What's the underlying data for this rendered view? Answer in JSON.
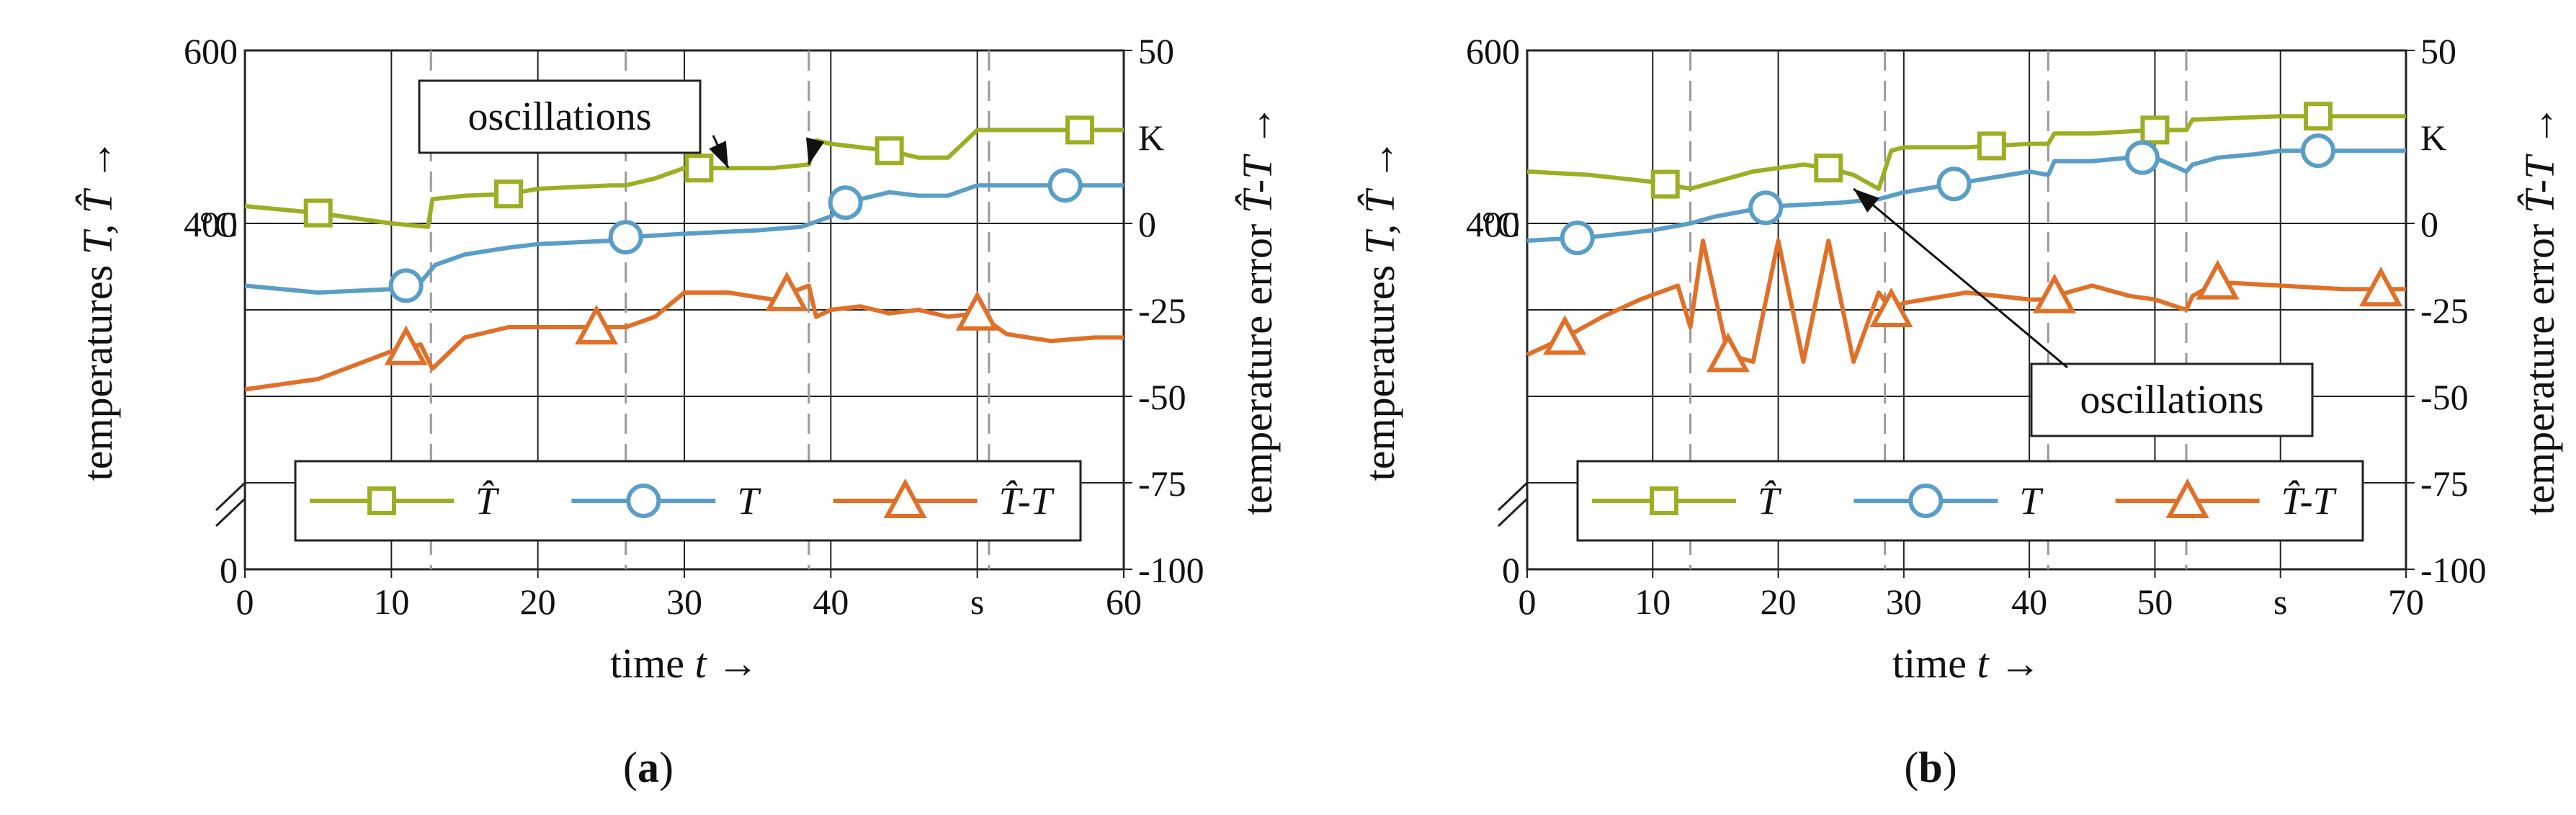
{
  "chart_data": [
    {
      "type": "line",
      "panel": "a",
      "caption_letter": "a",
      "xlabel_text": "time",
      "xlabel_symbol": "t →",
      "ylabel_left_text": "temperatures",
      "ylabel_left_symbols": "T, T̂ →",
      "ylabel_right_text": "temperature error",
      "ylabel_right_symbols": "T̂-T →",
      "left_unit": "°C",
      "right_unit": "K",
      "x_unit": "s",
      "xlim": [
        0,
        60
      ],
      "ylim_left": [
        0,
        600
      ],
      "ylim_right": [
        -100,
        50
      ],
      "x_ticks": [
        0,
        10,
        20,
        30,
        40,
        50,
        60
      ],
      "x_tick_labels": [
        "0",
        "10",
        "20",
        "30",
        "40",
        "s",
        "60"
      ],
      "y_left_ticks": [
        0,
        400,
        600
      ],
      "y_left_tick_labels": [
        "0",
        "400",
        "600"
      ],
      "y_right_ticks": [
        -100,
        -75,
        -50,
        -25,
        0,
        50
      ],
      "y_right_tick_labels": [
        "-100",
        "-75",
        "-50",
        "-25",
        "0",
        "50"
      ],
      "event_lines_x": [
        12.7,
        26,
        38.5,
        50.8
      ],
      "annotation": "oscillations",
      "legend": [
        "T̂",
        "T",
        "T̂-T"
      ],
      "series": [
        {
          "name": "T̂",
          "axis": "right",
          "color": "#9fad24",
          "marker": "square",
          "x": [
            0,
            5,
            10,
            12.5,
            12.8,
            15,
            18,
            20,
            25,
            26,
            28,
            30,
            33,
            36,
            38.5,
            39,
            40,
            42,
            44,
            46,
            48,
            50,
            52,
            55,
            57,
            60
          ],
          "y": [
            5,
            3,
            0,
            -1,
            7,
            8,
            8.5,
            10,
            11,
            11,
            13,
            16,
            16,
            16,
            17,
            24,
            23,
            22,
            21,
            19,
            19,
            27,
            27,
            27,
            27,
            27
          ],
          "markers_x": [
            5,
            18,
            31,
            44,
            57
          ]
        },
        {
          "name": "T",
          "axis": "right",
          "color": "#5a9ec8",
          "marker": "circle",
          "x": [
            0,
            5,
            10,
            12,
            13,
            15,
            18,
            20,
            25,
            26,
            30,
            35,
            38,
            40,
            41,
            42,
            44,
            46,
            48,
            50,
            52,
            55,
            58,
            60
          ],
          "y": [
            -18,
            -20,
            -19,
            -17,
            -12,
            -9,
            -7,
            -6,
            -5,
            -4,
            -3,
            -2,
            -1,
            2,
            6,
            7,
            9,
            8,
            8,
            11,
            11,
            11,
            11,
            11
          ],
          "markers_x": [
            11,
            26,
            41,
            56
          ]
        },
        {
          "name": "T̂-T",
          "axis": "right",
          "color": "#e07028",
          "marker": "triangle",
          "x": [
            0,
            5,
            10,
            12,
            12.8,
            15,
            18,
            20,
            25,
            26,
            28,
            30,
            33,
            36,
            38.5,
            39,
            40,
            42,
            44,
            46,
            48,
            50,
            52,
            55,
            58,
            60
          ],
          "y": [
            -48,
            -45,
            -37,
            -35,
            -42,
            -33,
            -30,
            -30,
            -30,
            -30,
            -27,
            -20,
            -20,
            -22,
            -18,
            -27,
            -25,
            -24,
            -26,
            -25,
            -27,
            -26,
            -32,
            -34,
            -33,
            -33
          ],
          "markers_x": [
            11,
            24,
            37,
            50
          ]
        }
      ]
    },
    {
      "type": "line",
      "panel": "b",
      "caption_letter": "b",
      "xlabel_text": "time",
      "xlabel_symbol": "t →",
      "ylabel_left_text": "temperatures",
      "ylabel_left_symbols": "T, T̂ →",
      "ylabel_right_text": "temperature error",
      "ylabel_right_symbols": "T̂-T →",
      "left_unit": "°C",
      "right_unit": "K",
      "x_unit": "s",
      "xlim": [
        0,
        70
      ],
      "ylim_left": [
        0,
        600
      ],
      "ylim_right": [
        -100,
        50
      ],
      "x_ticks": [
        0,
        10,
        20,
        30,
        40,
        50,
        60,
        70
      ],
      "x_tick_labels": [
        "0",
        "10",
        "20",
        "30",
        "40",
        "50",
        "s",
        "70"
      ],
      "y_left_ticks": [
        0,
        400,
        600
      ],
      "y_left_tick_labels": [
        "0",
        "400",
        "600"
      ],
      "y_right_ticks": [
        -100,
        -75,
        -50,
        -25,
        0,
        50
      ],
      "y_right_tick_labels": [
        "-100",
        "-75",
        "-50",
        "-25",
        "0",
        "50"
      ],
      "event_lines_x": [
        13,
        28.5,
        41.5,
        52.5
      ],
      "annotation": "oscillations",
      "legend": [
        "T̂",
        "T",
        "T̂-T"
      ],
      "series": [
        {
          "name": "T̂",
          "axis": "right",
          "color": "#9fad24",
          "marker": "square",
          "x": [
            0,
            5,
            10,
            13,
            15,
            18,
            20,
            22,
            24,
            26,
            28,
            29,
            30,
            35,
            40,
            41.5,
            42,
            45,
            50,
            52.5,
            53,
            60,
            65,
            70
          ],
          "y": [
            15,
            14,
            12,
            10,
            12,
            15,
            16,
            17,
            16,
            14,
            10,
            21,
            22,
            22,
            23,
            23,
            26,
            26,
            27,
            27,
            30,
            31,
            31,
            31
          ],
          "markers_x": [
            11,
            24,
            37,
            50,
            63
          ]
        },
        {
          "name": "T",
          "axis": "right",
          "color": "#5a9ec8",
          "marker": "circle",
          "x": [
            0,
            5,
            10,
            13,
            15,
            18,
            20,
            25,
            28,
            30,
            35,
            40,
            41.5,
            42,
            45,
            48,
            50,
            52.5,
            53,
            55,
            58,
            60,
            65,
            70
          ],
          "y": [
            -5,
            -4,
            -2,
            0,
            2,
            4,
            5,
            6,
            7,
            9,
            12,
            15,
            14,
            18,
            18,
            19,
            19,
            15,
            17,
            19,
            20,
            21,
            21,
            21
          ],
          "markers_x": [
            4,
            19,
            34,
            49,
            63
          ]
        },
        {
          "name": "T̂-T",
          "axis": "right",
          "color": "#e07028",
          "marker": "triangle",
          "x": [
            0,
            3,
            6,
            9,
            12,
            13,
            14,
            16,
            18,
            20,
            22,
            24,
            26,
            28,
            29,
            30,
            35,
            40,
            41.5,
            42,
            45,
            48,
            50,
            52.5,
            53,
            55,
            60,
            65,
            70
          ],
          "y": [
            -38,
            -33,
            -27,
            -22,
            -18,
            -30,
            -5,
            -38,
            -40,
            -5,
            -40,
            -5,
            -40,
            -20,
            -25,
            -23,
            -20,
            -22,
            -22,
            -21,
            -18,
            -21,
            -22,
            -25,
            -21,
            -17,
            -18,
            -19,
            -19
          ],
          "markers_x": [
            3,
            16,
            29,
            42,
            55,
            68
          ]
        }
      ]
    }
  ]
}
